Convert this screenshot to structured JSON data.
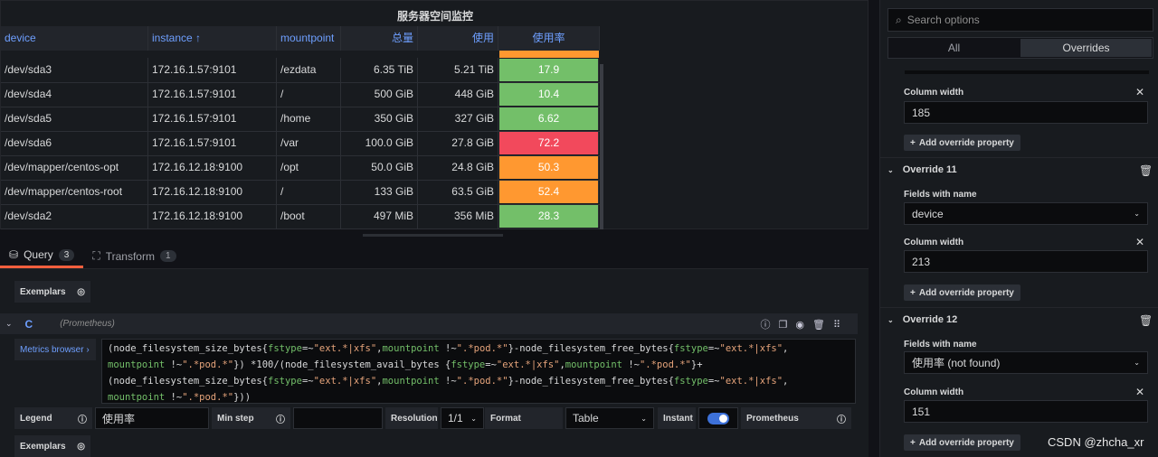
{
  "panel": {
    "title": "服务器空间监控",
    "columns": [
      "device",
      "instance ↑",
      "mountpoint",
      "总量",
      "使用",
      "使用率"
    ],
    "rows": [
      {
        "device": "/dev/sda3",
        "instance": "172.16.1.57:9101",
        "mountpoint": "/ezdata",
        "total": "6.35 TiB",
        "used": "5.21 TiB",
        "rate": "17.9",
        "level": "green"
      },
      {
        "device": "/dev/sda4",
        "instance": "172.16.1.57:9101",
        "mountpoint": "/",
        "total": "500 GiB",
        "used": "448 GiB",
        "rate": "10.4",
        "level": "green"
      },
      {
        "device": "/dev/sda5",
        "instance": "172.16.1.57:9101",
        "mountpoint": "/home",
        "total": "350 GiB",
        "used": "327 GiB",
        "rate": "6.62",
        "level": "green"
      },
      {
        "device": "/dev/sda6",
        "instance": "172.16.1.57:9101",
        "mountpoint": "/var",
        "total": "100.0 GiB",
        "used": "27.8 GiB",
        "rate": "72.2",
        "level": "red"
      },
      {
        "device": "/dev/mapper/centos-opt",
        "instance": "172.16.12.18:9100",
        "mountpoint": "/opt",
        "total": "50.0 GiB",
        "used": "24.8 GiB",
        "rate": "50.3",
        "level": "orange"
      },
      {
        "device": "/dev/mapper/centos-root",
        "instance": "172.16.12.18:9100",
        "mountpoint": "/",
        "total": "133 GiB",
        "used": "63.5 GiB",
        "rate": "52.4",
        "level": "orange"
      },
      {
        "device": "/dev/sda2",
        "instance": "172.16.12.18:9100",
        "mountpoint": "/boot",
        "total": "497 MiB",
        "used": "356 MiB",
        "rate": "28.3",
        "level": "green"
      }
    ]
  },
  "colors": {
    "green": "#73bf69",
    "red": "#f2495c",
    "orange": "#ff9830",
    "accent": "#f55f3e",
    "link": "#6e9fff"
  },
  "tabs": [
    {
      "label": "Query",
      "count": "3",
      "icon": "database-icon"
    },
    {
      "label": "Transform",
      "count": "1",
      "icon": "transform-icon"
    }
  ],
  "query": {
    "exemplars": "Exemplars",
    "ref": "C",
    "datasource": "(Prometheus)",
    "metrics_browser": "Metrics browser ›",
    "lines": [
      [
        [
          "t",
          "(node_filesystem_size_bytes{"
        ],
        [
          "k",
          "fstype"
        ],
        [
          "t",
          "=~"
        ],
        [
          "s",
          "\"ext.*|xfs\""
        ],
        [
          "t",
          ","
        ],
        [
          "k",
          "mountpoint"
        ],
        [
          "t",
          " !~"
        ],
        [
          "s",
          "\".*pod.*\""
        ],
        [
          "t",
          "}-node_filesystem_free_bytes{"
        ],
        [
          "k",
          "fstype"
        ],
        [
          "t",
          "=~"
        ],
        [
          "s",
          "\"ext.*|xfs\""
        ],
        [
          "t",
          ","
        ]
      ],
      [
        [
          "k",
          "mountpoint"
        ],
        [
          "t",
          " !~"
        ],
        [
          "s",
          "\".*pod.*\""
        ],
        [
          "t",
          "}) *100/(node_filesystem_avail_bytes {"
        ],
        [
          "k",
          "fstype"
        ],
        [
          "t",
          "=~"
        ],
        [
          "s",
          "\"ext.*|xfs\""
        ],
        [
          "t",
          ","
        ],
        [
          "k",
          "mountpoint"
        ],
        [
          "t",
          " !~"
        ],
        [
          "s",
          "\".*pod.*\""
        ],
        [
          "t",
          "}+"
        ]
      ],
      [
        [
          "t",
          "(node_filesystem_size_bytes{"
        ],
        [
          "k",
          "fstype"
        ],
        [
          "t",
          "=~"
        ],
        [
          "s",
          "\"ext.*|xfs\""
        ],
        [
          "t",
          ","
        ],
        [
          "k",
          "mountpoint"
        ],
        [
          "t",
          " !~"
        ],
        [
          "s",
          "\".*pod.*\""
        ],
        [
          "t",
          "}-node_filesystem_free_bytes{"
        ],
        [
          "k",
          "fstype"
        ],
        [
          "t",
          "=~"
        ],
        [
          "s",
          "\"ext.*|xfs\""
        ],
        [
          "t",
          ","
        ]
      ],
      [
        [
          "k",
          "mountpoint"
        ],
        [
          "t",
          " !~"
        ],
        [
          "s",
          "\".*pod.*\""
        ],
        [
          "t",
          "}))"
        ]
      ]
    ],
    "legend_label": "Legend",
    "legend_value": "使用率",
    "minstep_label": "Min step",
    "minstep_value": "",
    "resolution_label": "Resolution",
    "resolution_value": "1/1",
    "format_label": "Format",
    "format_value": "Table",
    "instant_label": "Instant",
    "instant_on": true,
    "prometheus_label": "Prometheus"
  },
  "options": {
    "search_placeholder": "Search options",
    "tab_all": "All",
    "tab_overrides": "Overrides",
    "active_tab": "Overrides",
    "column_width_label": "Column width",
    "fields_label": "Fields with name",
    "add_label": "Add override property",
    "o10_width": "185",
    "o11": {
      "title": "Override 11",
      "field": "device",
      "width": "213"
    },
    "o12": {
      "title": "Override 12",
      "field": "使用率 (not found)",
      "width": "151"
    }
  },
  "watermark": "CSDN @zhcha_xr"
}
